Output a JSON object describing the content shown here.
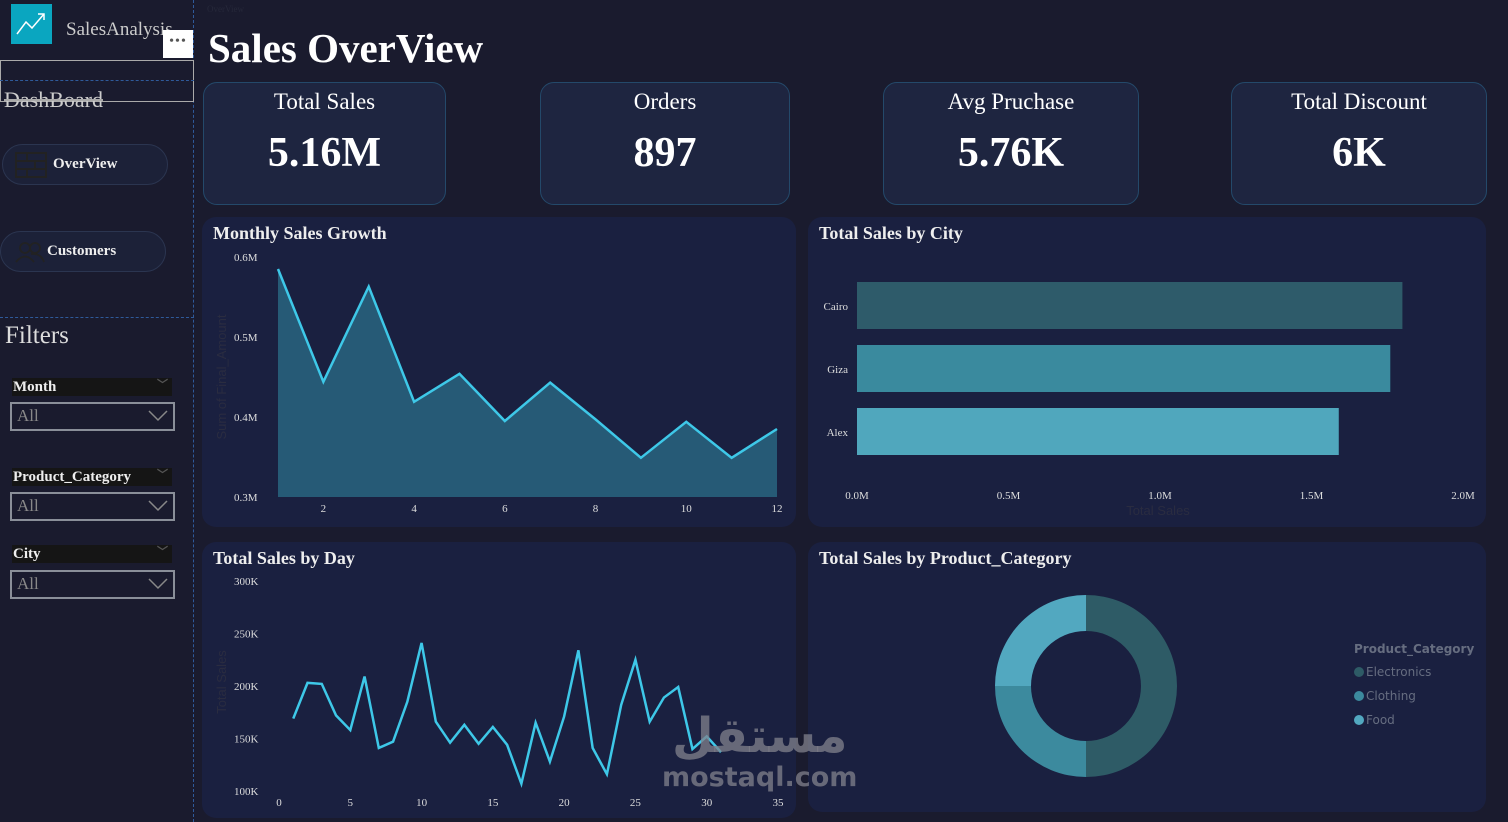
{
  "sidebar": {
    "app_name": "SalesAnalysis",
    "more_label": "•••",
    "dashboard_label": "DashBoard",
    "nav": [
      {
        "label": "OverView",
        "icon": "table-icon"
      },
      {
        "label": "Customers",
        "icon": "users-icon"
      }
    ],
    "filters_title": "Filters",
    "filters": [
      {
        "label": "Month",
        "value": "All"
      },
      {
        "label": "Product_Category",
        "value": "All"
      },
      {
        "label": "City",
        "value": "All"
      }
    ]
  },
  "header": {
    "tab": "OverView",
    "title": "Sales OverView"
  },
  "kpis": [
    {
      "label": "Total Sales",
      "value": "5.16M"
    },
    {
      "label": "Orders",
      "value": "897"
    },
    {
      "label": "Avg Pruchase",
      "value": "5.76K"
    },
    {
      "label": "Total Discount",
      "value": "6K"
    }
  ],
  "colors": {
    "line": "#3ec8e8",
    "area": "#265a76",
    "cairo": "#2e5b6a",
    "giza": "#3a8a9e",
    "alex": "#50a7bd",
    "electronics": "#2e5b66",
    "clothing": "#3c8a9e",
    "food": "#52a8c0"
  },
  "watermark": {
    "arabic": "مستقل",
    "latin": "mostaql.com"
  },
  "chart_data": [
    {
      "type": "area",
      "title": "Monthly Sales Growth",
      "ylabel": "Sum of Final_Amount",
      "x": [
        1,
        2,
        3,
        4,
        5,
        6,
        7,
        8,
        9,
        10,
        11,
        12
      ],
      "values": [
        0.585,
        0.444,
        0.563,
        0.419,
        0.454,
        0.395,
        0.443,
        0.397,
        0.349,
        0.394,
        0.349,
        0.385
      ],
      "ylim": [
        0.3,
        0.6
      ],
      "yticks": [
        "0.6M",
        "0.5M",
        "0.4M",
        "0.3M"
      ],
      "xticks": [
        "2",
        "4",
        "6",
        "8",
        "10",
        "12"
      ]
    },
    {
      "type": "bar",
      "title": "Total Sales by City",
      "xlabel": "Total Sales",
      "categories": [
        "Cairo",
        "Giza",
        "Alex"
      ],
      "values": [
        1.8,
        1.76,
        1.59
      ],
      "xlim": [
        0,
        2
      ],
      "xticks": [
        "0.0M",
        "0.5M",
        "1.0M",
        "1.5M",
        "2.0M"
      ]
    },
    {
      "type": "line",
      "title": "Total Sales by Day",
      "ylabel": "Total Sales",
      "x": [
        1,
        2,
        3,
        4,
        5,
        6,
        7,
        8,
        9,
        10,
        11,
        12,
        13,
        14,
        15,
        16,
        17,
        18,
        19,
        20,
        21,
        22,
        23,
        24,
        25,
        26,
        27,
        28,
        29,
        30,
        31
      ],
      "values": [
        169,
        203,
        202,
        172,
        158,
        209,
        141,
        147,
        185,
        241,
        166,
        146,
        163,
        145,
        161,
        144,
        107,
        165,
        128,
        171,
        234,
        141,
        116,
        182,
        225,
        166,
        189,
        199,
        140,
        152,
        137
      ],
      "ylim": [
        100,
        300
      ],
      "xlim": [
        0,
        35
      ],
      "yticks": [
        "300K",
        "250K",
        "200K",
        "150K",
        "100K"
      ],
      "xticks": [
        "0",
        "5",
        "10",
        "15",
        "20",
        "25",
        "30",
        "35"
      ]
    },
    {
      "type": "pie",
      "title": "Total Sales by Product_Category",
      "legend_title": "Product_Category",
      "categories": [
        "Electronics",
        "Clothing",
        "Food"
      ],
      "values": [
        50,
        25,
        25
      ]
    }
  ]
}
